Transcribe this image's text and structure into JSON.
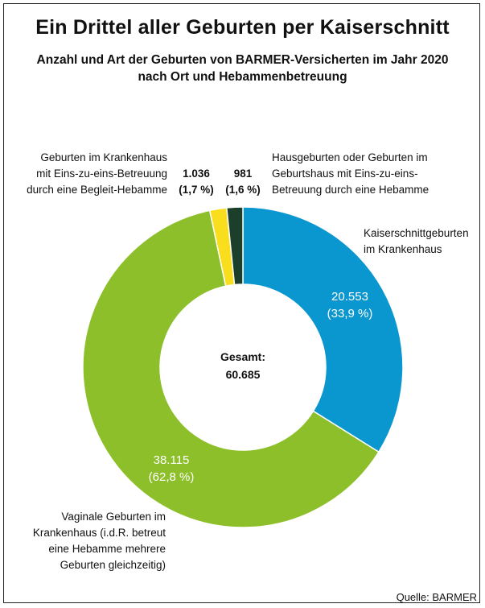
{
  "title": "Ein Drittel aller Geburten per Kaiserschnitt",
  "subtitle_lines": [
    "Anzahl und Art der Geburten von BARMER-Versicherten im Jahr 2020",
    "nach Ort und Hebammenbetreuung"
  ],
  "total": {
    "label": "Gesamt:",
    "value": "60.685"
  },
  "source": "Quelle: BARMER",
  "colors": {
    "kaiserschnitt": "#0a96cf",
    "vaginal": "#8cbf29",
    "begleit": "#f8de1c",
    "haus": "#1c3f2b"
  },
  "chart_data": {
    "type": "pie",
    "donut": true,
    "total": 60685,
    "slices": [
      {
        "key": "kaiserschnitt",
        "label_lines": [
          "Kaiserschnittgeburten",
          "im Krankenhaus"
        ],
        "value": 20553,
        "value_text": "20.553",
        "percent_text": "(33,9 %)",
        "color": "#0a96cf"
      },
      {
        "key": "vaginal",
        "label_lines": [
          "Vaginale Geburten im",
          "Krankenhaus (i.d.R. betreut",
          "eine Hebamme mehrere",
          "Geburten gleichzeitig)"
        ],
        "value": 38115,
        "value_text": "38.115",
        "percent_text": "(62,8 %)",
        "color": "#8cbf29"
      },
      {
        "key": "begleit",
        "label_lines": [
          "Geburten im Krankenhaus",
          "mit Eins-zu-eins-Betreuung",
          "durch eine Begleit-Hebamme"
        ],
        "value": 1036,
        "value_text": "1.036",
        "percent_text": "(1,7 %)",
        "color": "#f8de1c"
      },
      {
        "key": "haus",
        "label_lines": [
          "Hausgeburten oder Geburten im",
          "Geburtshaus mit Eins-zu-eins-",
          "Betreuung durch eine Hebamme"
        ],
        "value": 981,
        "value_text": "981",
        "percent_text": "(1,6 %)",
        "color": "#1c3f2b"
      }
    ]
  }
}
